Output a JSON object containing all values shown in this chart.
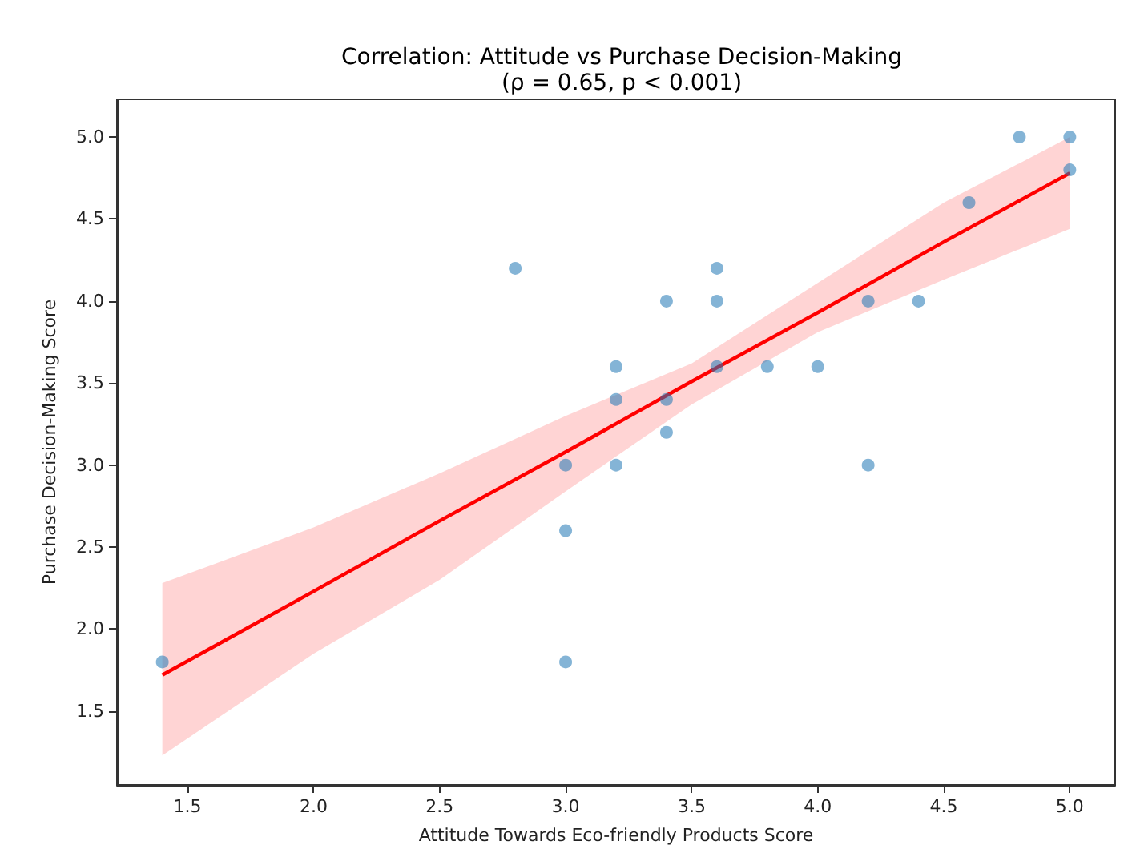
{
  "chart_data": {
    "type": "scatter",
    "title": "Correlation: Attitude vs Purchase Decision-Making",
    "subtitle": "(ρ = 0.65, p < 0.001)",
    "xlabel": "Attitude Towards Eco-friendly Products Score",
    "ylabel": "Purchase Decision-Making Score",
    "xlim": [
      1.22,
      5.18
    ],
    "xticks": [
      1.5,
      {
        "value": 2,
        "label": "2.0"
      },
      2.5,
      {
        "value": 3,
        "label": "3.0"
      },
      3.5,
      {
        "value": 4,
        "label": "4.0"
      },
      4.5,
      {
        "value": 5,
        "label": "5.0"
      }
    ],
    "ylim": [
      1.05,
      5.23
    ],
    "yticks": [
      1.5,
      {
        "value": 2,
        "label": "2.0"
      },
      2.5,
      {
        "value": 3,
        "label": "3.0"
      },
      3.5,
      {
        "value": 4,
        "label": "4.0"
      },
      4.5,
      {
        "value": 5,
        "label": "5.0"
      }
    ],
    "grid": false,
    "series": [
      {
        "type": "scatter",
        "marker": "circle",
        "color": "#1f77b4",
        "x": [
          1.4,
          2.8,
          3.0,
          3.0,
          3.0,
          3.2,
          3.2,
          3.2,
          3.4,
          3.4,
          3.4,
          3.6,
          3.6,
          3.6,
          3.8,
          4.0,
          4.2,
          4.2,
          4.4,
          4.6,
          4.8,
          5.0,
          5.0
        ],
        "values": [
          1.8,
          4.2,
          3.0,
          2.6,
          1.8,
          3.6,
          3.4,
          3.0,
          4.0,
          3.4,
          3.2,
          4.2,
          4.0,
          3.6,
          3.6,
          3.6,
          4.0,
          3.0,
          4.0,
          4.6,
          5.0,
          5.0,
          4.8
        ]
      },
      {
        "type": "line",
        "marker": "none",
        "color": "#ff0000",
        "x": [
          1.4,
          2.0,
          2.5,
          3.0,
          3.5,
          4.0,
          4.5,
          5.0
        ],
        "values": [
          1.72,
          2.23,
          2.66,
          3.08,
          3.51,
          3.93,
          4.36,
          4.78
        ],
        "lower": [
          1.23,
          1.85,
          2.3,
          2.84,
          3.37,
          3.81,
          4.13,
          4.44
        ],
        "upper": [
          2.28,
          2.62,
          2.95,
          3.3,
          3.62,
          4.11,
          4.6,
          5.0
        ]
      }
    ]
  }
}
